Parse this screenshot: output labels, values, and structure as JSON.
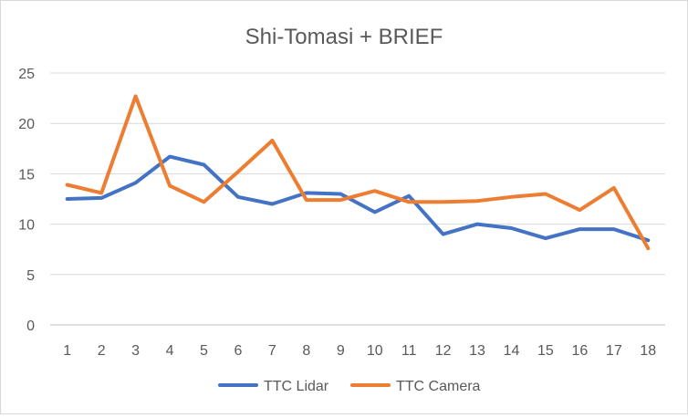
{
  "chart_data": {
    "type": "line",
    "title": "Shi-Tomasi + BRIEF",
    "xlabel": "",
    "ylabel": "",
    "x": [
      "1",
      "2",
      "3",
      "4",
      "5",
      "6",
      "7",
      "8",
      "9",
      "10",
      "11",
      "12",
      "13",
      "14",
      "15",
      "16",
      "17",
      "18"
    ],
    "ylim": [
      0,
      25
    ],
    "yticks": [
      0,
      5,
      10,
      15,
      20,
      25
    ],
    "grid": true,
    "legend": "bottom",
    "series": [
      {
        "name": "TTC Lidar",
        "color": "#4472C4",
        "values": [
          12.5,
          12.6,
          14.1,
          16.7,
          15.9,
          12.7,
          12.0,
          13.1,
          13.0,
          11.2,
          12.8,
          9.0,
          10.0,
          9.6,
          8.6,
          9.5,
          9.5,
          8.4
        ]
      },
      {
        "name": "TTC Camera",
        "color": "#ED7D31",
        "values": [
          13.9,
          13.1,
          22.7,
          13.8,
          12.2,
          15.2,
          18.3,
          12.4,
          12.4,
          13.3,
          12.2,
          12.2,
          12.3,
          12.7,
          13.0,
          11.4,
          13.6,
          7.6
        ]
      }
    ]
  }
}
